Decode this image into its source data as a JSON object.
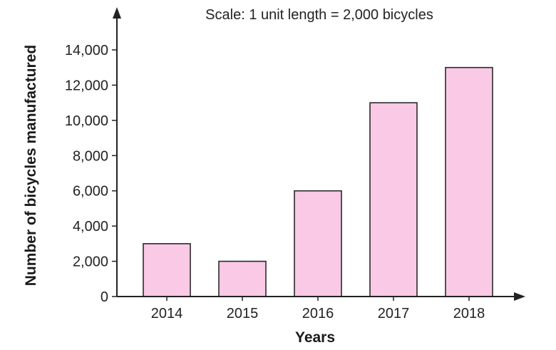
{
  "chart_data": {
    "type": "bar",
    "categories": [
      "2014",
      "2015",
      "2016",
      "2017",
      "2018"
    ],
    "values": [
      3000,
      2000,
      6000,
      11000,
      13000
    ],
    "title": "Scale: 1 unit length = 2,000 bicycles",
    "xlabel": "Years",
    "ylabel": "Number of bicycles manufactured",
    "ylim": [
      0,
      14000
    ],
    "yticks": [
      0,
      2000,
      4000,
      6000,
      8000,
      10000,
      12000,
      14000
    ],
    "ytick_labels": [
      "0",
      "2,000",
      "4,000",
      "6,000",
      "8,000",
      "10,000",
      "12,000",
      "14,000"
    ],
    "grid": false,
    "legend": "none",
    "bar_color": "#f9c9e6",
    "bar_edge_color": "#2a2a2a"
  }
}
